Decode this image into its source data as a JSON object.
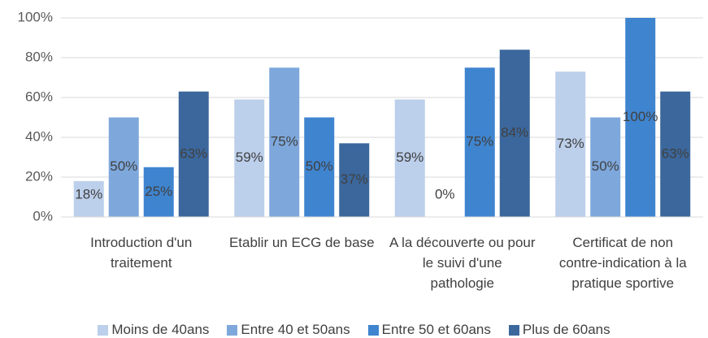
{
  "chart_data": {
    "type": "bar",
    "categories": [
      "Introduction d'un traitement",
      "Etablir un ECG de base",
      "A la découverte ou pour le suivi d'une pathologie",
      "Certificat de non contre-indication à la pratique sportive"
    ],
    "series": [
      {
        "name": "Moins de 40ans",
        "color": "#bccfeb",
        "values": [
          18,
          59,
          59,
          73
        ],
        "value_labels": [
          "18%",
          "59%",
          "59%",
          "73%"
        ]
      },
      {
        "name": "Entre 40 et 50ans",
        "color": "#7ea8dc",
        "values": [
          50,
          75,
          0,
          50
        ],
        "value_labels": [
          "50%",
          "75%",
          "0%",
          "50%"
        ]
      },
      {
        "name": "Entre 50 et 60ans",
        "color": "#3f84cf",
        "values": [
          25,
          50,
          75,
          100
        ],
        "value_labels": [
          "25%",
          "50%",
          "75%",
          "100%"
        ]
      },
      {
        "name": "Plus de 60ans",
        "color": "#3b679c",
        "values": [
          63,
          37,
          84,
          63
        ],
        "value_labels": [
          "63%",
          "37%",
          "84%",
          "63%"
        ]
      }
    ],
    "ylim": [
      0,
      100
    ],
    "yticks": [
      {
        "value": 0,
        "label": "0%"
      },
      {
        "value": 20,
        "label": "20%"
      },
      {
        "value": 40,
        "label": "40%"
      },
      {
        "value": 60,
        "label": "60%"
      },
      {
        "value": 80,
        "label": "80%"
      },
      {
        "value": 100,
        "label": "100%"
      }
    ],
    "grid": true
  }
}
